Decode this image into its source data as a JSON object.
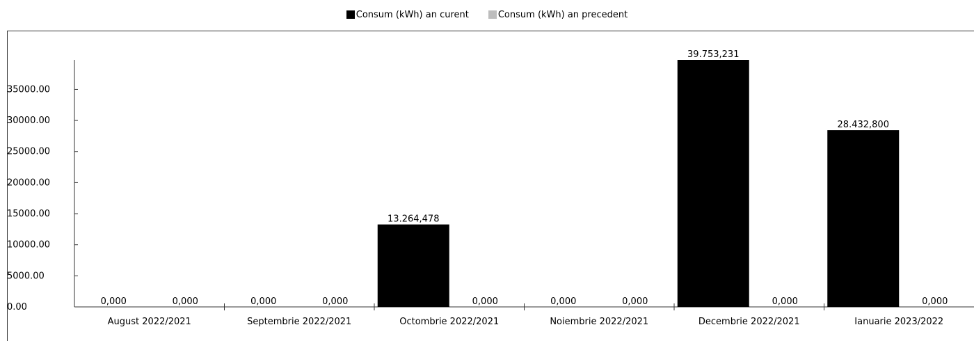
{
  "legend": {
    "current_label": "Consum (kWh) an curent",
    "previous_label": "Consum (kWh) an precedent"
  },
  "colors": {
    "current": "#000000",
    "previous": "#bdbdbd",
    "axis": "#333333"
  },
  "chart_data": {
    "type": "bar",
    "title": "",
    "xlabel": "",
    "ylabel": "",
    "ylim": [
      0,
      39753.231
    ],
    "grid": false,
    "legend_position": "top-center",
    "y_ticks": [
      "0.00",
      "5000.00",
      "10000.00",
      "15000.00",
      "20000.00",
      "25000.00",
      "30000.00",
      "35000.00"
    ],
    "categories": [
      "August 2022/2021",
      "Septembrie 2022/2021",
      "Octombrie 2022/2021",
      "Noiembrie 2022/2021",
      "Decembrie 2022/2021",
      "Ianuarie 2023/2022"
    ],
    "series": [
      {
        "name": "Consum (kWh) an curent",
        "values": [
          0,
          0,
          13264.478,
          0,
          39753.231,
          28432.8
        ],
        "labels": [
          "0,000",
          "0,000",
          "13.264,478",
          "0,000",
          "39.753,231",
          "28.432,800"
        ]
      },
      {
        "name": "Consum (kWh) an precedent",
        "values": [
          0,
          0,
          0,
          0,
          0,
          0
        ],
        "labels": [
          "0,000",
          "0,000",
          "0,000",
          "0,000",
          "0,000",
          "0,000"
        ]
      }
    ]
  }
}
